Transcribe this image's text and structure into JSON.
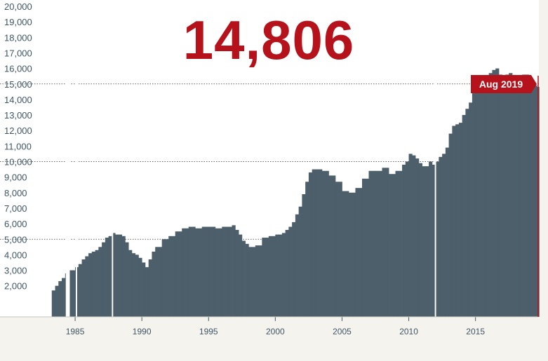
{
  "headline": "14,806",
  "highlight_label": "Aug 2019",
  "colors": {
    "bars": "#4d5f6b",
    "accent": "#b5121b",
    "background": "#ffffff",
    "tick_text": "#3f5666"
  },
  "chart_data": {
    "type": "bar",
    "title": "",
    "xlabel": "",
    "ylabel": "",
    "ylim": [
      0,
      20000
    ],
    "yticks": [
      "20,000",
      "19,000",
      "18,000",
      "17,000",
      "16,000",
      "15,000",
      "14,000",
      "13,000",
      "12,000",
      "11,000",
      "10,000",
      "9,000",
      "8,000",
      "7,000",
      "6,000",
      "5,000",
      "4,000",
      "3,000",
      "2,000"
    ],
    "ytick_values": [
      20000,
      19000,
      18000,
      17000,
      16000,
      15000,
      14000,
      13000,
      12000,
      11000,
      10000,
      9000,
      8000,
      7000,
      6000,
      5000,
      4000,
      3000,
      2000
    ],
    "reference_lines": [
      15000,
      10000,
      5000
    ],
    "xticks": [
      "1985",
      "1990",
      "1995",
      "2000",
      "2005",
      "2010",
      "2015"
    ],
    "xtick_values": [
      1985,
      1990,
      1995,
      2000,
      2005,
      2010,
      2015
    ],
    "xlim": [
      1982.0,
      2019.75
    ],
    "bar_width_years": 0.1667,
    "gaps": [
      [
        1984.3,
        1984.6
      ],
      [
        1985.05,
        1985.15
      ],
      [
        1987.75,
        1987.85
      ],
      [
        2011.95,
        2012.05
      ]
    ],
    "series": [
      {
        "x": [
          1983.25,
          1983.5,
          1983.75,
          1984,
          1984.25,
          1984.5,
          1984.75,
          1985,
          1985.25,
          1985.5,
          1985.75,
          1986,
          1986.25,
          1986.5,
          1986.75,
          1987,
          1987.25,
          1987.5,
          1987.75,
          1988,
          1988.25,
          1988.5,
          1988.75,
          1989,
          1989.25,
          1989.5,
          1989.75,
          1990,
          1990.25,
          1990.5,
          1990.75,
          1991,
          1991.5,
          1992,
          1992.5,
          1993,
          1993.5,
          1994,
          1994.5,
          1995,
          1995.5,
          1996,
          1996.5,
          1996.75,
          1997,
          1997.25,
          1997.5,
          1997.75,
          1998,
          1998.5,
          1999,
          1999.5,
          2000,
          2000.25,
          2000.5,
          2000.75,
          2001,
          2001.25,
          2001.5,
          2001.75,
          2002,
          2002.25,
          2002.5,
          2002.75,
          2003,
          2003.5,
          2004,
          2004.5,
          2005,
          2005.5,
          2006,
          2006.5,
          2007,
          2007.5,
          2008,
          2008.5,
          2009,
          2009.5,
          2009.75,
          2010,
          2010.25,
          2010.5,
          2010.75,
          2011,
          2011.5,
          2011.75,
          2012,
          2012.25,
          2012.5,
          2012.75,
          2013,
          2013.25,
          2013.5,
          2013.75,
          2014,
          2014.25,
          2014.5,
          2014.75,
          2015,
          2015.25,
          2015.5,
          2015.75,
          2016,
          2016.25,
          2016.5,
          2016.75,
          2017,
          2017.25,
          2017.5,
          2017.75,
          2018,
          2018.25,
          2018.5,
          2018.75,
          2019,
          2019.25,
          2019.5,
          2019.6
        ],
        "values": [
          1700,
          2000,
          2300,
          2500,
          2800,
          3000,
          3000,
          3200,
          3400,
          3700,
          3900,
          4100,
          4200,
          4300,
          4500,
          4800,
          5100,
          5200,
          5400,
          5300,
          5300,
          5200,
          4800,
          4300,
          4100,
          4000,
          3800,
          3500,
          3200,
          3700,
          4200,
          4500,
          5000,
          5200,
          5500,
          5700,
          5800,
          5700,
          5800,
          5800,
          5700,
          5800,
          5800,
          5900,
          5600,
          5300,
          4900,
          4700,
          4500,
          4600,
          5100,
          5200,
          5300,
          5300,
          5400,
          5600,
          5800,
          6100,
          6600,
          7100,
          7900,
          8700,
          9300,
          9500,
          9500,
          9400,
          9100,
          8700,
          8100,
          8000,
          8300,
          8900,
          9400,
          9400,
          9600,
          9200,
          9400,
          9800,
          10000,
          10500,
          10400,
          10200,
          9900,
          9700,
          10000,
          9800,
          10000,
          10300,
          10500,
          10900,
          11800,
          12300,
          12400,
          12500,
          13000,
          13400,
          13800,
          14400,
          14900,
          15000,
          14600,
          14800,
          15700,
          15900,
          16000,
          15600,
          15500,
          15600,
          15700,
          15500,
          15300,
          15200,
          15600,
          15600,
          15300,
          15100,
          14900,
          14806
        ]
      }
    ]
  }
}
